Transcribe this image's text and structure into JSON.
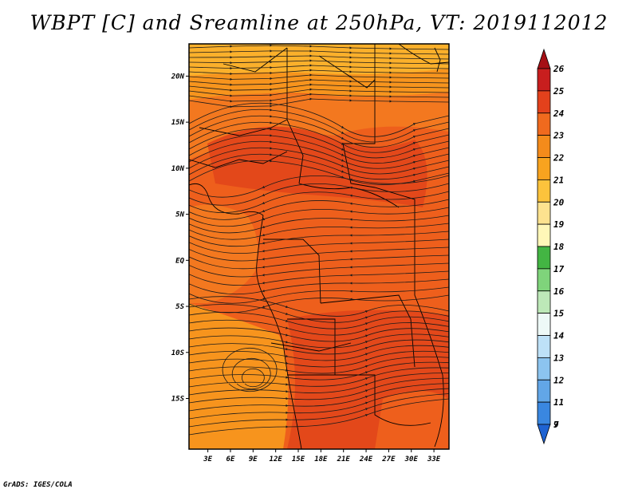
{
  "title": "WBPT [C] and Sreamline at 250hPa, VT: 2019112012",
  "credit": "GrADS: IGES/COLA",
  "map": {
    "lat_labels": [
      "20N",
      "15N",
      "10N",
      "5N",
      "EQ",
      "5S",
      "10S",
      "15S"
    ],
    "lon_labels": [
      "3E",
      "6E",
      "9E",
      "12E",
      "15E",
      "18E",
      "21E",
      "24E",
      "27E",
      "30E",
      "33E"
    ],
    "colors": {
      "warm_deep": "#e3481a",
      "warm_mid": "#ee5f1c",
      "warm_light": "#f3781f",
      "warm_orange": "#f7941d",
      "warm_amber": "#fbb02b",
      "streamline": "#1a1a1a",
      "border": "#000000"
    }
  },
  "colorbar": {
    "labels": [
      "26",
      "25",
      "24",
      "23",
      "22",
      "21",
      "20",
      "19",
      "18",
      "17",
      "16",
      "15",
      "14",
      "13",
      "12",
      "11",
      "9",
      "7"
    ],
    "colors": [
      "#a50f15",
      "#c81e1e",
      "#e3411c",
      "#f06a1e",
      "#f48b1b",
      "#f8a31f",
      "#fcc33c",
      "#fde28f",
      "#fff7b8",
      "#43b543",
      "#7fd47b",
      "#bde8b8",
      "#eef9f7",
      "#bee1f7",
      "#8cc4ef",
      "#62a6e7",
      "#3a87e0",
      "#1f63d2"
    ]
  }
}
